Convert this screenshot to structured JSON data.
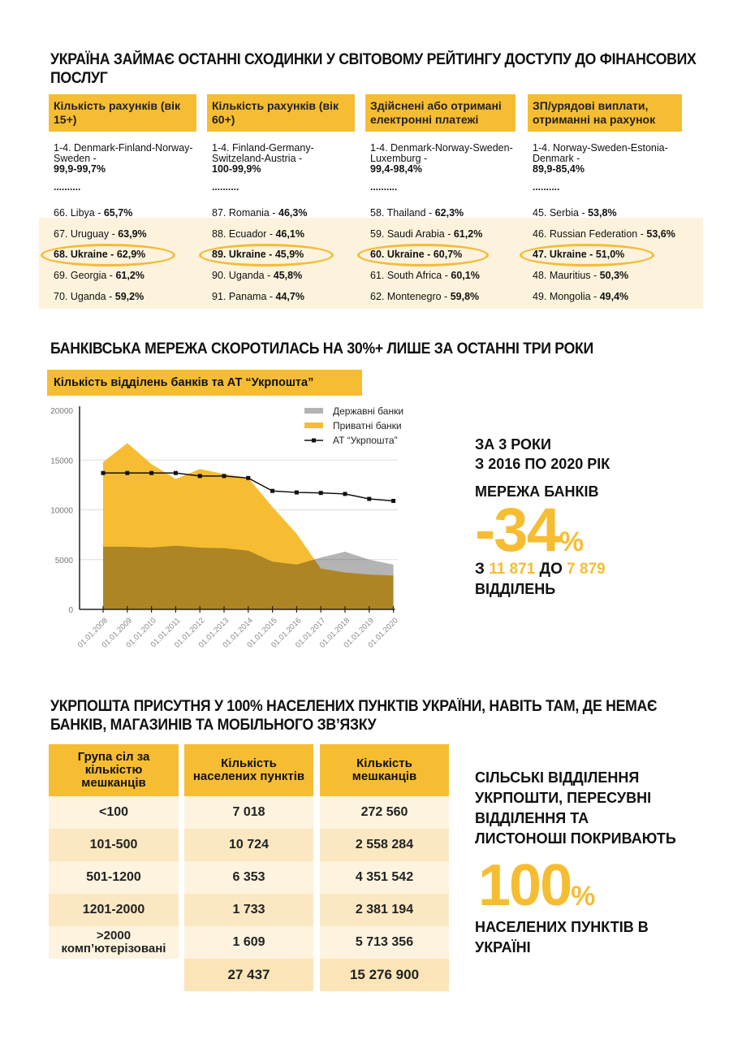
{
  "section1": {
    "title": "УКРАЇНА ЗАЙМАЄ ОСТАННІ СХОДИНКИ У СВІТОВОМУ РЕЙТИНГУ ДОСТУПУ ДО ФІНАНСОВИХ ПОСЛУГ",
    "columns": [
      {
        "header": "Кількість рахунків (вік 15+)",
        "top_countries": "1-4. Denmark-Finland-Norway-Sweden -",
        "top_value": "99,9-99,7%",
        "dots": "..........",
        "rows": [
          {
            "name": "66. Libya -",
            "value": "65,7%"
          },
          {
            "name": "67. Uruguay -",
            "value": "63,9%"
          },
          {
            "name": "68. Ukraine -",
            "value": "62,9%",
            "highlight": true
          },
          {
            "name": "69. Georgia -",
            "value": "61,2%"
          },
          {
            "name": "70. Uganda -",
            "value": "59,2%"
          }
        ]
      },
      {
        "header": "Кількість рахунків (вік 60+)",
        "top_countries": "1-4. Finland-Germany-Switzeland-Austria -",
        "top_value": "100-99,9%",
        "dots": "..........",
        "rows": [
          {
            "name": "87. Romania -",
            "value": "46,3%"
          },
          {
            "name": "88. Ecuador -",
            "value": "46,1%"
          },
          {
            "name": "89. Ukraine -",
            "value": "45,9%",
            "highlight": true
          },
          {
            "name": "90. Uganda -",
            "value": "45,8%"
          },
          {
            "name": "91. Panama -",
            "value": "44,7%"
          }
        ]
      },
      {
        "header": "Здійснені або отримані електронні платежі",
        "top_countries": "1-4. Denmark-Norway-Sweden-Luxemburg -",
        "top_value": "99,4-98,4%",
        "dots": "..........",
        "rows": [
          {
            "name": "58. Thailand -",
            "value": "62,3%"
          },
          {
            "name": "59. Saudi Arabia -",
            "value": "61,2%"
          },
          {
            "name": "60. Ukraine -",
            "value": "60,7%",
            "highlight": true
          },
          {
            "name": "61. South Africa -",
            "value": "60,1%"
          },
          {
            "name": "62. Montenegro -",
            "value": "59,8%"
          }
        ]
      },
      {
        "header": "ЗП/урядові виплати, отриманні на рахунок",
        "top_countries": "1-4. Norway-Sweden-Estonia-Denmark -",
        "top_value": "89,9-85,4%",
        "dots": "..........",
        "rows": [
          {
            "name": "45. Serbia -",
            "value": "53,8%"
          },
          {
            "name": "46. Russian Federation -",
            "value": "53,6%"
          },
          {
            "name": "47. Ukraine -",
            "value": "51,0%",
            "highlight": true
          },
          {
            "name": "48. Mauritius -",
            "value": "50,3%"
          },
          {
            "name": "49. Mongolia -",
            "value": "49,4%"
          }
        ]
      }
    ]
  },
  "section2": {
    "title": "БАНКІВСЬКА МЕРЕЖА СКОРОТИЛАСЬ НА 30%+ ЛИШЕ ЗА ОСТАННІ ТРИ РОКИ",
    "chart_label": "Кількість відділень банків та АТ “Укрпошта”",
    "summary": {
      "line1": "ЗА 3 РОКИ",
      "line2": "З 2016 ПО 2020 РІК",
      "line3": "МЕРЕЖА БАНКІВ",
      "percent": "-34",
      "percent_sign": "%",
      "from_prefix": "З",
      "from": "11 871",
      "to_prefix": "ДО",
      "to": "7 879",
      "unit": "ВІДДІЛЕНЬ"
    }
  },
  "chart_data": {
    "type": "area",
    "title": "Кількість відділень банків та АТ “Укрпошта”",
    "xlabel": "",
    "ylabel": "",
    "ylim": [
      0,
      20000
    ],
    "yticks": [
      "0",
      "5000",
      "10000",
      "15000",
      "20000"
    ],
    "categories": [
      "01.01.2008",
      "01.01.2009",
      "01.01.2010",
      "01.01.2011",
      "01.01.2012",
      "01.01.2013",
      "01.01.2014",
      "01.01.2015",
      "01.01.2016",
      "01.01.2017",
      "01.01.2018",
      "01.01.2019",
      "01.01.2020"
    ],
    "legend_position": "top-right",
    "grid": true,
    "series": [
      {
        "name": "Державні банки",
        "type": "area",
        "color": "#b4b4b4",
        "values": [
          6300,
          6300,
          6200,
          6400,
          6200,
          6150,
          5900,
          4800,
          4500,
          5200,
          5800,
          5000,
          4500
        ]
      },
      {
        "name": "Приватні банки",
        "type": "area",
        "color": "#f6bd33",
        "values": [
          14800,
          16700,
          14600,
          13100,
          14100,
          13600,
          13200,
          10300,
          7600,
          4100,
          3700,
          3500,
          3400
        ]
      },
      {
        "name": "АТ “Укрпошта”",
        "type": "line",
        "color": "#111111",
        "values": [
          13700,
          13700,
          13700,
          13700,
          13400,
          13400,
          13200,
          11900,
          11750,
          11700,
          11600,
          11100,
          10900
        ]
      }
    ]
  },
  "section3": {
    "title": "УКРПОШТА ПРИСУТНЯ У 100% НАСЕЛЕНИХ ПУНКТІВ УКРАЇНИ, НАВІТЬ ТАМ, ДЕ НЕМАЄ БАНКІВ, МАГАЗИНІВ ТА МОБІЛЬНОГО ЗВ’ЯЗКУ",
    "table": {
      "headers": [
        "Група сіл за кількістю мешканців",
        "Кількість населених пунктів",
        "Кількість мешканців"
      ],
      "rows": [
        [
          "<100",
          "7 018",
          "272 560"
        ],
        [
          "101-500",
          "10 724",
          "2 558 284"
        ],
        [
          "501-1200",
          "6 353",
          "4 351 542"
        ],
        [
          "1201-2000",
          "1 733",
          "2 381 194"
        ],
        [
          ">2000 комп’ютерізовані",
          "1 609",
          "5 713 356"
        ]
      ],
      "totals": [
        "27 437",
        "15 276 900"
      ]
    },
    "summary": {
      "text": "СІЛЬСЬКІ ВІДДІЛЕННЯ УКРПОШТИ, ПЕРЕСУВНІ ВІДДІЛЕННЯ ТА ЛИСТОНОШІ ПОКРИВАЮТЬ",
      "percent": "100",
      "percent_sign": "%",
      "tail": "НАСЕЛЕНИХ ПУНКТІВ В УКРАЇНІ"
    }
  }
}
